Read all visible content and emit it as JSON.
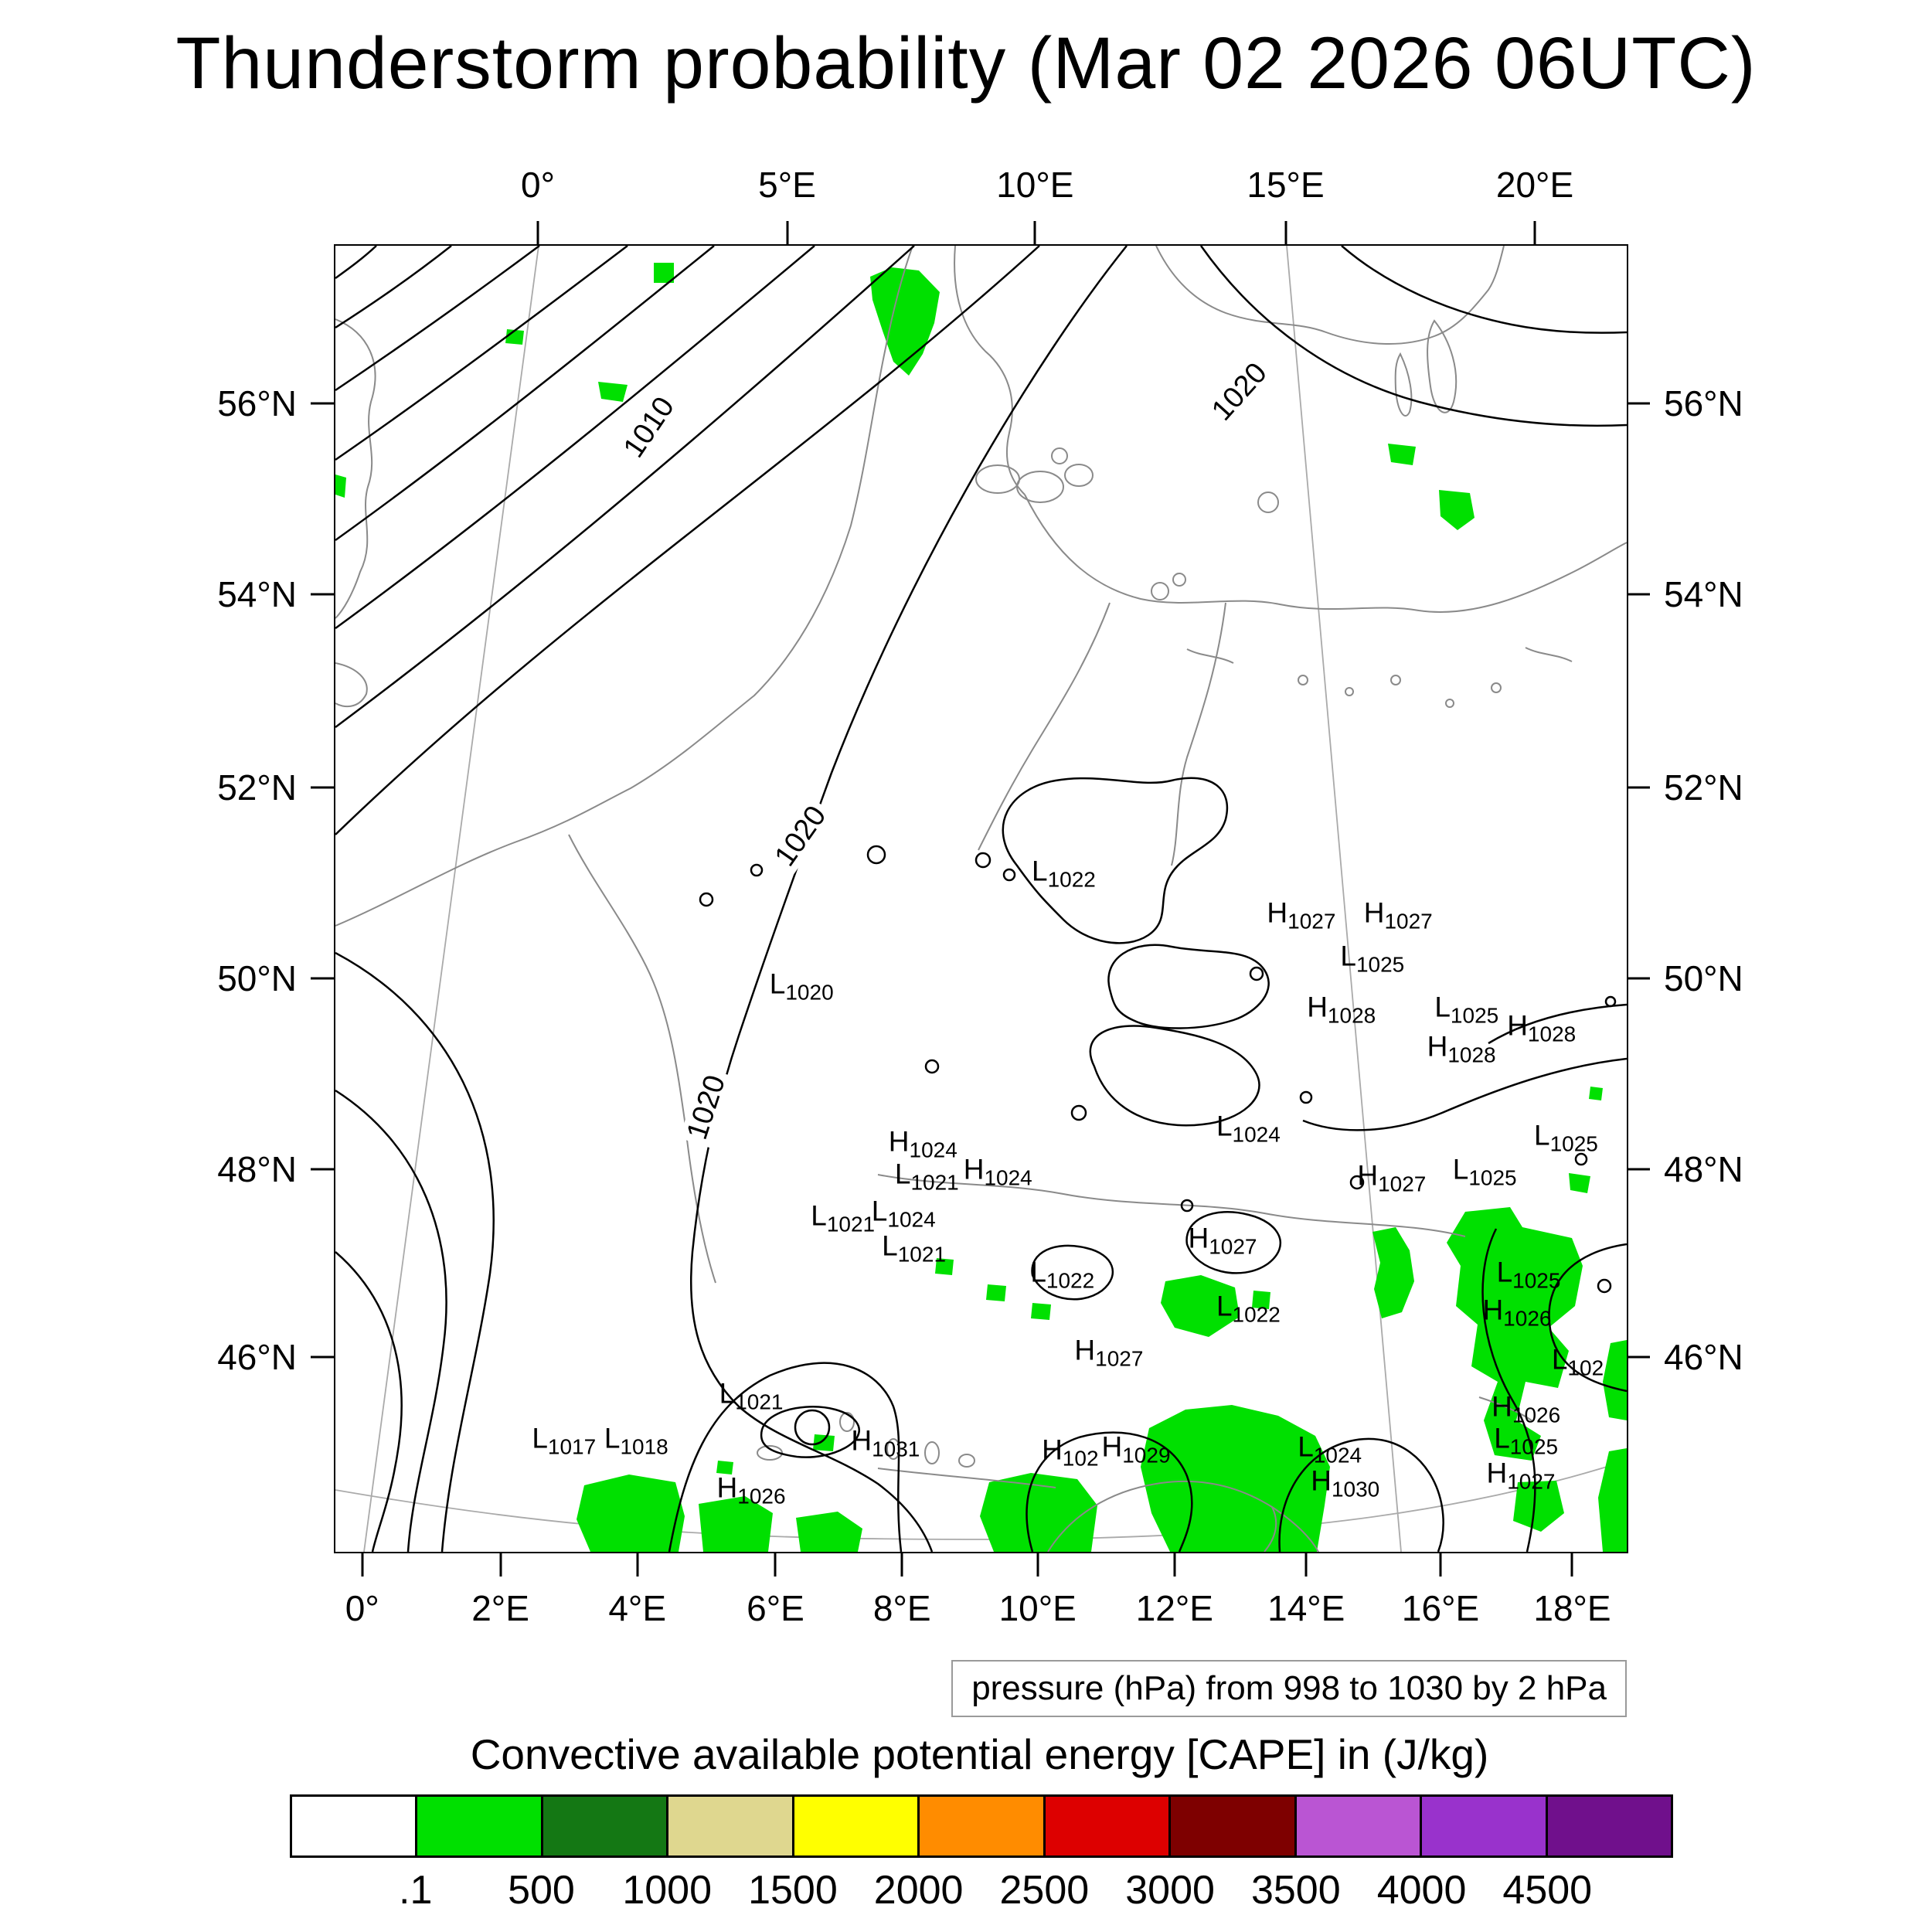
{
  "title": "Thunderstorm probability (Mar 02 2026 06UTC)",
  "pressure_note": "pressure (hPa) from 998 to 1030 by 2 hPa",
  "legend": {
    "title": "Convective available potential energy [CAPE] in (J/kg)",
    "labels": [
      ".1",
      "500",
      "1000",
      "1500",
      "2000",
      "2500",
      "3000",
      "3500",
      "4000",
      "4500"
    ],
    "colors": [
      "#FFFFFF",
      "#00E000",
      "#147814",
      "#DFD78F",
      "#FFFF00",
      "#FF8C00",
      "#DD0000",
      "#7E0000",
      "#BA55D3",
      "#9932CC",
      "#70108C"
    ]
  },
  "chart_data": {
    "type": "heatmap",
    "title": "Thunderstorm probability (Mar 02 2026 06UTC)",
    "fields": {
      "pressure": {
        "units": "hPa",
        "contour_min": 998,
        "contour_max": 1030,
        "contour_interval": 2
      },
      "cape": {
        "units": "J/kg",
        "levels": [
          0.1,
          500,
          1000,
          1500,
          2000,
          2500,
          3000,
          3500,
          4000,
          4500
        ],
        "shading_color_low": "#00E000"
      }
    },
    "axes": {
      "top": [
        {
          "label": "0°",
          "p": 0.158
        },
        {
          "label": "5°E",
          "p": 0.351
        },
        {
          "label": "10°E",
          "p": 0.543
        },
        {
          "label": "15°E",
          "p": 0.737
        },
        {
          "label": "20°E",
          "p": 0.93
        }
      ],
      "bottom": [
        {
          "label": "0°",
          "p": 0.022
        },
        {
          "label": "2°E",
          "p": 0.129
        },
        {
          "label": "4°E",
          "p": 0.235
        },
        {
          "label": "6°E",
          "p": 0.342
        },
        {
          "label": "8°E",
          "p": 0.44
        },
        {
          "label": "10°E",
          "p": 0.545
        },
        {
          "label": "12°E",
          "p": 0.651
        },
        {
          "label": "14°E",
          "p": 0.753
        },
        {
          "label": "16°E",
          "p": 0.857
        },
        {
          "label": "18°E",
          "p": 0.959
        }
      ],
      "left": [
        {
          "label": "56°N",
          "p": 0.122
        },
        {
          "label": "54°N",
          "p": 0.268
        },
        {
          "label": "52°N",
          "p": 0.416
        },
        {
          "label": "50°N",
          "p": 0.562
        },
        {
          "label": "48°N",
          "p": 0.708
        },
        {
          "label": "46°N",
          "p": 0.852
        }
      ],
      "right": [
        {
          "label": "56°N",
          "p": 0.122
        },
        {
          "label": "54°N",
          "p": 0.268
        },
        {
          "label": "52°N",
          "p": 0.416
        },
        {
          "label": "50°N",
          "p": 0.562
        },
        {
          "label": "48°N",
          "p": 0.708
        },
        {
          "label": "46°N",
          "p": 0.852
        }
      ]
    },
    "isobar_labels": [
      {
        "text": "1010",
        "x": 0.243,
        "y": 0.139,
        "rot": -56
      },
      {
        "text": "1020",
        "x": 0.7,
        "y": 0.112,
        "rot": -48
      },
      {
        "text": "1020",
        "x": 0.36,
        "y": 0.452,
        "rot": -55
      },
      {
        "text": "1020",
        "x": 0.287,
        "y": 0.66,
        "rot": -72
      }
    ],
    "pressure_centers": [
      {
        "t": "L",
        "v": "1022",
        "x": 0.564,
        "y": 0.48
      },
      {
        "t": "H",
        "v": "1027",
        "x": 0.748,
        "y": 0.512
      },
      {
        "t": "H",
        "v": "1027",
        "x": 0.823,
        "y": 0.512
      },
      {
        "t": "L",
        "v": "1025",
        "x": 0.803,
        "y": 0.545
      },
      {
        "t": "L",
        "v": "1020",
        "x": 0.361,
        "y": 0.566
      },
      {
        "t": "H",
        "v": "1028",
        "x": 0.779,
        "y": 0.584
      },
      {
        "t": "L",
        "v": "1025",
        "x": 0.876,
        "y": 0.584
      },
      {
        "t": "H",
        "v": "1028",
        "x": 0.934,
        "y": 0.598
      },
      {
        "t": "H",
        "v": "1028",
        "x": 0.872,
        "y": 0.614
      },
      {
        "t": "L",
        "v": "1024",
        "x": 0.707,
        "y": 0.675
      },
      {
        "t": "L",
        "v": "1025",
        "x": 0.953,
        "y": 0.682
      },
      {
        "t": "H",
        "v": "1024",
        "x": 0.455,
        "y": 0.687
      },
      {
        "t": "L",
        "v": "1021",
        "x": 0.458,
        "y": 0.712
      },
      {
        "t": "H",
        "v": "1024",
        "x": 0.513,
        "y": 0.708
      },
      {
        "t": "H",
        "v": "1027",
        "x": 0.818,
        "y": 0.713
      },
      {
        "t": "L",
        "v": "1025",
        "x": 0.89,
        "y": 0.708
      },
      {
        "t": "L",
        "v": "1021",
        "x": 0.393,
        "y": 0.744
      },
      {
        "t": "L",
        "v": "1024",
        "x": 0.44,
        "y": 0.74
      },
      {
        "t": "L",
        "v": "1021",
        "x": 0.448,
        "y": 0.767
      },
      {
        "t": "H",
        "v": "1027",
        "x": 0.687,
        "y": 0.761
      },
      {
        "t": "L",
        "v": "1022",
        "x": 0.563,
        "y": 0.787
      },
      {
        "t": "L",
        "v": "1025",
        "x": 0.924,
        "y": 0.787
      },
      {
        "t": "L",
        "v": "1022",
        "x": 0.707,
        "y": 0.813
      },
      {
        "t": "H",
        "v": "1026",
        "x": 0.915,
        "y": 0.816
      },
      {
        "t": "H",
        "v": "1027",
        "x": 0.599,
        "y": 0.847
      },
      {
        "t": "L",
        "v": "102",
        "x": 0.962,
        "y": 0.854
      },
      {
        "t": "L",
        "v": "1021",
        "x": 0.322,
        "y": 0.88
      },
      {
        "t": "H",
        "v": "1026",
        "x": 0.922,
        "y": 0.89
      },
      {
        "t": "L",
        "v": "1017",
        "x": 0.177,
        "y": 0.914
      },
      {
        "t": "L",
        "v": "1018",
        "x": 0.233,
        "y": 0.914
      },
      {
        "t": "H",
        "v": "1031",
        "x": 0.426,
        "y": 0.916
      },
      {
        "t": "L",
        "v": "1025",
        "x": 0.922,
        "y": 0.914
      },
      {
        "t": "H",
        "v": "102",
        "x": 0.569,
        "y": 0.923
      },
      {
        "t": "H",
        "v": "1029",
        "x": 0.62,
        "y": 0.921
      },
      {
        "t": "L",
        "v": "1024",
        "x": 0.77,
        "y": 0.921
      },
      {
        "t": "H",
        "v": "1027",
        "x": 0.918,
        "y": 0.941
      },
      {
        "t": "H",
        "v": "1026",
        "x": 0.322,
        "y": 0.952
      },
      {
        "t": "H",
        "v": "1030",
        "x": 0.782,
        "y": 0.947
      }
    ]
  }
}
